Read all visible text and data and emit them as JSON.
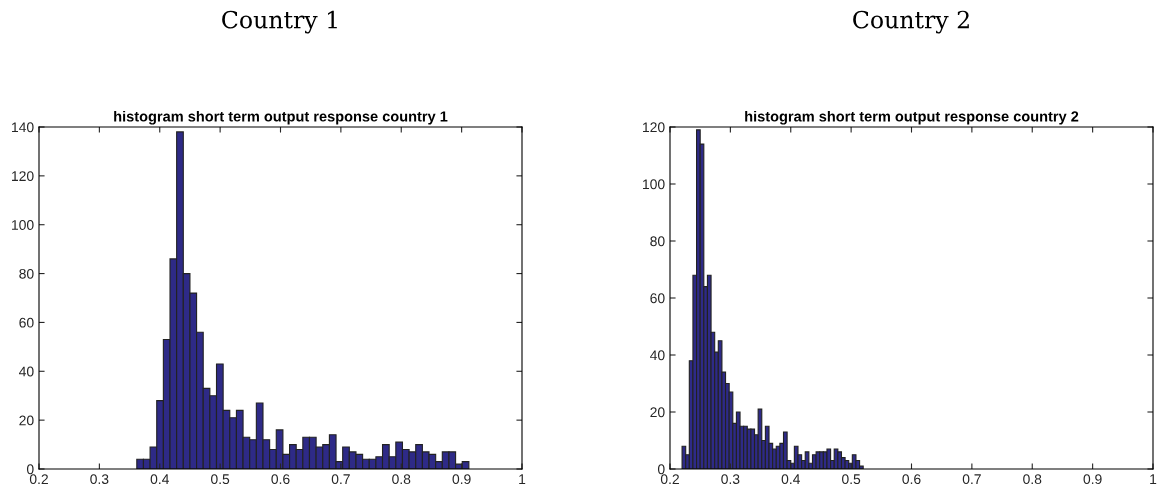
{
  "chart_data": [
    {
      "type": "histogram",
      "title": "Country 1",
      "subtitle": "histogram short term output response country 1",
      "color": "#2e2a87",
      "bins": [
        0.362,
        0.373,
        0.384,
        0.395,
        0.406,
        0.417,
        0.428,
        0.439,
        0.45,
        0.461,
        0.472,
        0.483,
        0.494,
        0.505,
        0.516,
        0.527,
        0.538,
        0.549,
        0.56,
        0.571,
        0.582,
        0.593,
        0.604,
        0.615,
        0.626,
        0.637,
        0.648,
        0.659,
        0.67,
        0.681,
        0.692,
        0.703,
        0.714,
        0.725,
        0.736,
        0.747,
        0.758,
        0.769,
        0.78,
        0.791,
        0.802,
        0.813,
        0.824,
        0.835,
        0.846,
        0.857,
        0.868,
        0.879,
        0.89,
        0.901,
        0.912
      ],
      "values": [
        4,
        4,
        9,
        28,
        53,
        86,
        138,
        80,
        72,
        56,
        33,
        30,
        43,
        24,
        21,
        24,
        13,
        12,
        27,
        12,
        8,
        16,
        6,
        10,
        8,
        13,
        13,
        9,
        10,
        14,
        3,
        9,
        7,
        6,
        4,
        4,
        5,
        10,
        5,
        11,
        8,
        7,
        10,
        7,
        6,
        3,
        7,
        7,
        2,
        3
      ],
      "xlim": [
        0.2,
        1
      ],
      "xticks": [
        0.2,
        0.3,
        0.4,
        0.5,
        0.6,
        0.7,
        0.8,
        0.9,
        1
      ],
      "ylim": [
        0,
        140
      ],
      "yticks": [
        0,
        20,
        40,
        60,
        80,
        100,
        120,
        140
      ],
      "grid": false
    },
    {
      "type": "histogram",
      "title": "Country 2",
      "subtitle": "histogram short term output response country 2",
      "color": "#2e2a87",
      "bins": [
        0.22,
        0.226,
        0.232,
        0.238,
        0.244,
        0.25,
        0.256,
        0.262,
        0.268,
        0.274,
        0.28,
        0.286,
        0.292,
        0.298,
        0.304,
        0.31,
        0.316,
        0.322,
        0.328,
        0.334,
        0.34,
        0.346,
        0.352,
        0.358,
        0.364,
        0.37,
        0.376,
        0.382,
        0.388,
        0.394,
        0.4,
        0.406,
        0.412,
        0.418,
        0.424,
        0.43,
        0.436,
        0.442,
        0.448,
        0.454,
        0.46,
        0.466,
        0.472,
        0.478,
        0.484,
        0.49,
        0.496,
        0.502,
        0.508,
        0.514,
        0.52
      ],
      "values": [
        8,
        5,
        38,
        68,
        119,
        114,
        64,
        68,
        48,
        41,
        45,
        34,
        30,
        27,
        16,
        20,
        15,
        15,
        14,
        14,
        12,
        21,
        10,
        15,
        9,
        7,
        8,
        9,
        13,
        3,
        2,
        8,
        5,
        3,
        6,
        2,
        5,
        6,
        6,
        6,
        7,
        3,
        7,
        6,
        4,
        3,
        2,
        5,
        3,
        1
      ],
      "xlim": [
        0.2,
        1
      ],
      "xticks": [
        0.2,
        0.3,
        0.4,
        0.5,
        0.6,
        0.7,
        0.8,
        0.9,
        1
      ],
      "ylim": [
        0,
        120
      ],
      "yticks": [
        0,
        20,
        40,
        60,
        80,
        100,
        120
      ],
      "grid": false
    }
  ]
}
